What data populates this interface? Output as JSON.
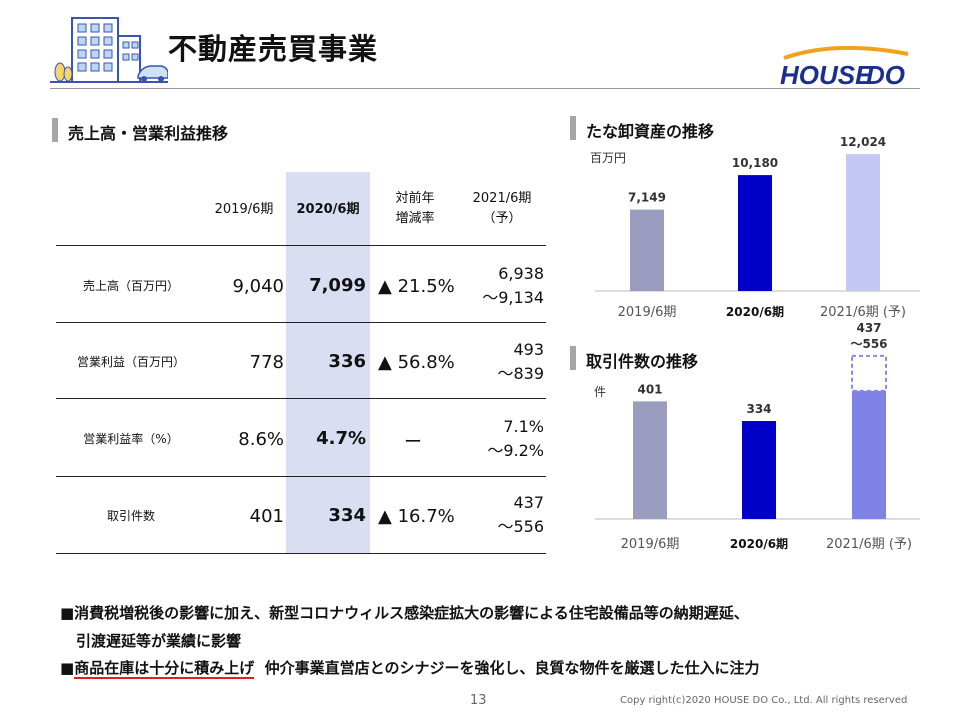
{
  "header": {
    "title": "不動産売買事業",
    "logo_text": "HOUSEDO"
  },
  "left_section": {
    "title": "売上高・営業利益推移",
    "columns": [
      "2019/6期",
      "2020/6期",
      "対前年",
      "増減率",
      "2021/6期",
      "（予）"
    ],
    "rows": [
      {
        "label": "売上高（百万円）",
        "v2019": "9,040",
        "v2020": "7,099",
        "change": "▲ 21.5%",
        "v2021_a": "6,938",
        "v2021_b": "～9,134"
      },
      {
        "label": "営業利益（百万円）",
        "v2019": "778",
        "v2020": "336",
        "change": "▲ 56.8%",
        "v2021_a": "493",
        "v2021_b": "～839"
      },
      {
        "label": "営業利益率（%）",
        "v2019": "8.6%",
        "v2020": "4.7%",
        "change": "ー",
        "v2021_a": "7.1%",
        "v2021_b": "～9.2%"
      },
      {
        "label": "取引件数",
        "v2019": "401",
        "v2020": "334",
        "change": "▲ 16.7%",
        "v2021_a": "437",
        "v2021_b": "～556"
      }
    ]
  },
  "chart_data": [
    {
      "type": "bar",
      "title": "たな卸資産の推移",
      "ylabel": "百万円",
      "categories": [
        "2019/6期",
        "2020/6期",
        "2021/6期 (予)"
      ],
      "values": [
        7149,
        10180,
        12024
      ],
      "value_labels": [
        "7,149",
        "10,180",
        "12,024"
      ],
      "colors": [
        "#9a9cc0",
        "#0000c8",
        "#c4c8f2"
      ],
      "ylim": [
        0,
        13000
      ]
    },
    {
      "type": "bar",
      "title": "取引件数の推移",
      "ylabel": "件",
      "categories": [
        "2019/6期",
        "2020/6期",
        "2021/6期 (予)"
      ],
      "values": [
        401,
        334,
        437
      ],
      "range_top": 556,
      "value_labels": [
        "401",
        "334",
        "437"
      ],
      "range_label": "～556",
      "colors": [
        "#9a9cc0",
        "#0000c8",
        "#7f82e6"
      ],
      "ylim": [
        0,
        600
      ]
    }
  ],
  "bullets": {
    "b1_line1": "■消費税増税後の影響に加え、新型コロナウィルス感染症拡大の影響による住宅設備品等の納期遅延、",
    "b1_line2": "引渡遅延等が業績に影響",
    "b2_mark": "■",
    "b2_highlight": "商品在庫は十分に積み上げ",
    "b2_rest": "仲介事業直営店とのシナジーを強化し、良質な物件を厳選した仕入に注力"
  },
  "footer": {
    "page": "13",
    "copyright": "Copy right(c)2020  HOUSE DO Co., Ltd. All rights reserved"
  }
}
